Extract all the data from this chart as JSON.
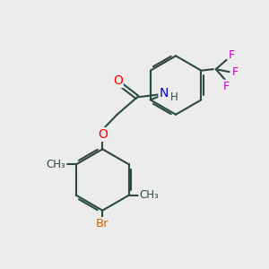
{
  "bg_color": "#ececec",
  "bond_color": "#2d4a3e",
  "bond_width": 1.5,
  "atom_colors": {
    "O": "#ff0000",
    "N": "#0000cc",
    "Br": "#cc6600",
    "F": "#cc00cc",
    "C": "#2d4a3e",
    "H": "#2d4a3e"
  },
  "font_size": 8.5
}
